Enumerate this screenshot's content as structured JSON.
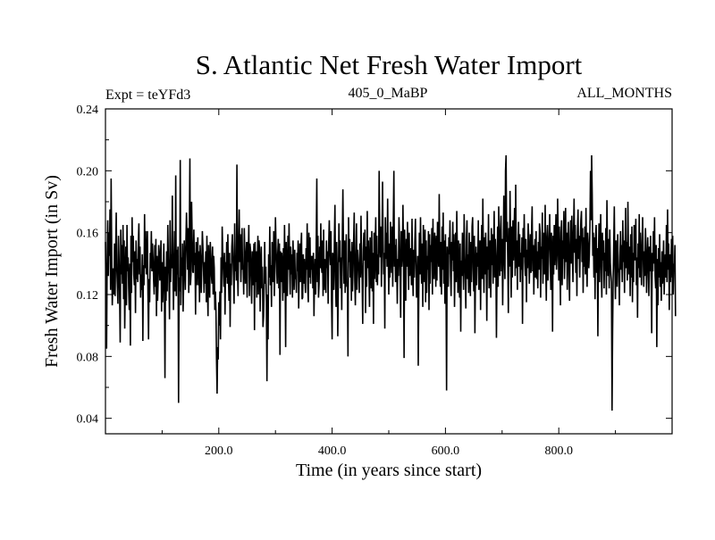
{
  "chart_data": {
    "type": "line",
    "title": "S. Atlantic Net Fresh Water Import",
    "subtitle_left": "Expt = teYFd3",
    "subtitle_center": "405_0_MaBP",
    "subtitle_right": "ALL_MONTHS",
    "xlabel": "Time (in years since start)",
    "ylabel": "Fresh Water Import (in Sv)",
    "xlim": [
      0,
      1000
    ],
    "ylim": [
      0.03,
      0.24
    ],
    "xticks": [
      200,
      400,
      600,
      800
    ],
    "xtick_labels": [
      "200.0",
      "400.0",
      "600.0",
      "800.0"
    ],
    "yticks": [
      0.04,
      0.08,
      0.12,
      0.16,
      0.2,
      0.24
    ],
    "ytick_labels": [
      "0.04",
      "0.08",
      "0.12",
      "0.16",
      "0.20",
      "0.24"
    ],
    "line_color": "#000000",
    "series": [
      {
        "name": "Fresh Water Import",
        "x_start": 0,
        "x_step": 1,
        "values": [
          0.154,
          0.118,
          0.085,
          0.142,
          0.168,
          0.132,
          0.16,
          0.145,
          0.175,
          0.123,
          0.195,
          0.148,
          0.113,
          0.127,
          0.137,
          0.12,
          0.153,
          0.119,
          0.146,
          0.173,
          0.137,
          0.126,
          0.114,
          0.158,
          0.142,
          0.12,
          0.089,
          0.162,
          0.133,
          0.152,
          0.127,
          0.165,
          0.117,
          0.155,
          0.098,
          0.127,
          0.151,
          0.113,
          0.165,
          0.135,
          0.144,
          0.124,
          0.11,
          0.14,
          0.087,
          0.158,
          0.121,
          0.17,
          0.141,
          0.158,
          0.133,
          0.126,
          0.148,
          0.108,
          0.155,
          0.13,
          0.143,
          0.128,
          0.153,
          0.166,
          0.133,
          0.151,
          0.118,
          0.133,
          0.123,
          0.146,
          0.09,
          0.139,
          0.126,
          0.172,
          0.137,
          0.161,
          0.133,
          0.142,
          0.161,
          0.12,
          0.091,
          0.13,
          0.115,
          0.147,
          0.137,
          0.161,
          0.135,
          0.153,
          0.143,
          0.129,
          0.12,
          0.152,
          0.125,
          0.156,
          0.106,
          0.145,
          0.116,
          0.129,
          0.152,
          0.147,
          0.129,
          0.14,
          0.155,
          0.109,
          0.141,
          0.115,
          0.13,
          0.153,
          0.124,
          0.066,
          0.138,
          0.116,
          0.148,
          0.122,
          0.165,
          0.143,
          0.132,
          0.104,
          0.168,
          0.128,
          0.146,
          0.137,
          0.184,
          0.144,
          0.11,
          0.133,
          0.161,
          0.122,
          0.197,
          0.119,
          0.149,
          0.133,
          0.151,
          0.05,
          0.131,
          0.122,
          0.207,
          0.113,
          0.144,
          0.132,
          0.153,
          0.109,
          0.127,
          0.155,
          0.142,
          0.123,
          0.155,
          0.173,
          0.155,
          0.136,
          0.163,
          0.121,
          0.158,
          0.208,
          0.126,
          0.133,
          0.18,
          0.157,
          0.135,
          0.134,
          0.162,
          0.139,
          0.147,
          0.107,
          0.154,
          0.126,
          0.141,
          0.157,
          0.126,
          0.148,
          0.115,
          0.152,
          0.143,
          0.121,
          0.138,
          0.161,
          0.15,
          0.137,
          0.121,
          0.141,
          0.127,
          0.148,
          0.115,
          0.158,
          0.124,
          0.106,
          0.152,
          0.137,
          0.118,
          0.154,
          0.145,
          0.132,
          0.127,
          0.151,
          0.12,
          0.145,
          0.137,
          0.11,
          0.122,
          0.11,
          0.078,
          0.056,
          0.086,
          0.078,
          0.115,
          0.1,
          0.122,
          0.091,
          0.144,
          0.121,
          0.164,
          0.147,
          0.136,
          0.125,
          0.147,
          0.107,
          0.141,
          0.131,
          0.154,
          0.127,
          0.159,
          0.132,
          0.116,
          0.147,
          0.099,
          0.14,
          0.126,
          0.151,
          0.159,
          0.145,
          0.132,
          0.114,
          0.166,
          0.135,
          0.143,
          0.129,
          0.204,
          0.136,
          0.119,
          0.153,
          0.175,
          0.141,
          0.159,
          0.128,
          0.146,
          0.163,
          0.136,
          0.138,
          0.12,
          0.163,
          0.145,
          0.127,
          0.144,
          0.154,
          0.118,
          0.154,
          0.141,
          0.165,
          0.119,
          0.153,
          0.149,
          0.131,
          0.114,
          0.148,
          0.126,
          0.14,
          0.153,
          0.097,
          0.154,
          0.128,
          0.148,
          0.118,
          0.138,
          0.158,
          0.12,
          0.155,
          0.149,
          0.109,
          0.136,
          0.151,
          0.124,
          0.138,
          0.099,
          0.106,
          0.124,
          0.154,
          0.127,
          0.138,
          0.115,
          0.064,
          0.12,
          0.091,
          0.146,
          0.131,
          0.164,
          0.126,
          0.139,
          0.112,
          0.154,
          0.145,
          0.128,
          0.161,
          0.119,
          0.134,
          0.17,
          0.151,
          0.14,
          0.127,
          0.146,
          0.156,
          0.124,
          0.153,
          0.081,
          0.148,
          0.128,
          0.147,
          0.139,
          0.116,
          0.15,
          0.121,
          0.165,
          0.136,
          0.086,
          0.154,
          0.128,
          0.119,
          0.158,
          0.136,
          0.166,
          0.137,
          0.12,
          0.151,
          0.133,
          0.146,
          0.118,
          0.155,
          0.137,
          0.123,
          0.149,
          0.13,
          0.132,
          0.121,
          0.147,
          0.135,
          0.155,
          0.111,
          0.136,
          0.153,
          0.128,
          0.151,
          0.16,
          0.117,
          0.118,
          0.146,
          0.127,
          0.143,
          0.13,
          0.121,
          0.15,
          0.136,
          0.166,
          0.124,
          0.115,
          0.16,
          0.131,
          0.157,
          0.127,
          0.145,
          0.136,
          0.145,
          0.124,
          0.147,
          0.106,
          0.131,
          0.143,
          0.12,
          0.155,
          0.195,
          0.128,
          0.158,
          0.118,
          0.127,
          0.151,
          0.137,
          0.166,
          0.14,
          0.134,
          0.155,
          0.119,
          0.162,
          0.123,
          0.143,
          0.134,
          0.121,
          0.155,
          0.137,
          0.148,
          0.114,
          0.153,
          0.168,
          0.148,
          0.139,
          0.161,
          0.116,
          0.091,
          0.147,
          0.142,
          0.123,
          0.155,
          0.178,
          0.131,
          0.112,
          0.154,
          0.135,
          0.093,
          0.128,
          0.166,
          0.141,
          0.155,
          0.124,
          0.144,
          0.11,
          0.155,
          0.188,
          0.151,
          0.127,
          0.155,
          0.121,
          0.141,
          0.159,
          0.125,
          0.127,
          0.08,
          0.17,
          0.141,
          0.156,
          0.131,
          0.148,
          0.116,
          0.154,
          0.122,
          0.136,
          0.155,
          0.173,
          0.129,
          0.113,
          0.143,
          0.166,
          0.123,
          0.149,
          0.141,
          0.136,
          0.121,
          0.153,
          0.131,
          0.171,
          0.14,
          0.13,
          0.101,
          0.149,
          0.16,
          0.142,
          0.162,
          0.108,
          0.151,
          0.125,
          0.174,
          0.137,
          0.155,
          0.135,
          0.112,
          0.157,
          0.145,
          0.124,
          0.161,
          0.122,
          0.147,
          0.101,
          0.16,
          0.13,
          0.149,
          0.17,
          0.128,
          0.158,
          0.126,
          0.146,
          0.133,
          0.2,
          0.157,
          0.144,
          0.164,
          0.125,
          0.156,
          0.193,
          0.155,
          0.133,
          0.147,
          0.098,
          0.17,
          0.143,
          0.16,
          0.138,
          0.182,
          0.144,
          0.12,
          0.153,
          0.131,
          0.167,
          0.148,
          0.134,
          0.164,
          0.125,
          0.167,
          0.2,
          0.138,
          0.152,
          0.128,
          0.156,
          0.139,
          0.114,
          0.143,
          0.132,
          0.17,
          0.154,
          0.132,
          0.105,
          0.161,
          0.138,
          0.145,
          0.178,
          0.148,
          0.079,
          0.162,
          0.137,
          0.116,
          0.156,
          0.138,
          0.167,
          0.143,
          0.123,
          0.16,
          0.132,
          0.141,
          0.15,
          0.126,
          0.169,
          0.137,
          0.119,
          0.149,
          0.131,
          0.154,
          0.169,
          0.142,
          0.118,
          0.124,
          0.145,
          0.074,
          0.123,
          0.16,
          0.133,
          0.17,
          0.142,
          0.127,
          0.153,
          0.112,
          0.165,
          0.144,
          0.128,
          0.162,
          0.115,
          0.155,
          0.121,
          0.145,
          0.136,
          0.161,
          0.11,
          0.159,
          0.127,
          0.152,
          0.141,
          0.163,
          0.12,
          0.169,
          0.134,
          0.13,
          0.16,
          0.15,
          0.125,
          0.158,
          0.129,
          0.167,
          0.155,
          0.138,
          0.185,
          0.14,
          0.125,
          0.154,
          0.12,
          0.164,
          0.136,
          0.173,
          0.127,
          0.155,
          0.114,
          0.159,
          0.128,
          0.058,
          0.151,
          0.139,
          0.125,
          0.157,
          0.146,
          0.168,
          0.132,
          0.119,
          0.154,
          0.142,
          0.167,
          0.135,
          0.159,
          0.112,
          0.141,
          0.16,
          0.128,
          0.174,
          0.148,
          0.121,
          0.155,
          0.137,
          0.118,
          0.153,
          0.096,
          0.142,
          0.132,
          0.16,
          0.141,
          0.123,
          0.172,
          0.145,
          0.131,
          0.111,
          0.155,
          0.168,
          0.13,
          0.146,
          0.121,
          0.16,
          0.14,
          0.119,
          0.154,
          0.128,
          0.164,
          0.17,
          0.137,
          0.122,
          0.158,
          0.095,
          0.133,
          0.151,
          0.126,
          0.147,
          0.138,
          0.168,
          0.123,
          0.142,
          0.155,
          0.11,
          0.145,
          0.165,
          0.13,
          0.182,
          0.144,
          0.121,
          0.157,
          0.133,
          0.16,
          0.142,
          0.103,
          0.151,
          0.136,
          0.172,
          0.124,
          0.141,
          0.155,
          0.118,
          0.163,
          0.139,
          0.159,
          0.127,
          0.148,
          0.174,
          0.131,
          0.156,
          0.142,
          0.092,
          0.136,
          0.164,
          0.125,
          0.177,
          0.15,
          0.132,
          0.16,
          0.171,
          0.135,
          0.156,
          0.113,
          0.145,
          0.184,
          0.144,
          0.13,
          0.2,
          0.21,
          0.154,
          0.167,
          0.141,
          0.108,
          0.163,
          0.138,
          0.187,
          0.152,
          0.118,
          0.164,
          0.131,
          0.168,
          0.142,
          0.158,
          0.176,
          0.132,
          0.191,
          0.137,
          0.155,
          0.123,
          0.151,
          0.167,
          0.138,
          0.159,
          0.128,
          0.147,
          0.136,
          0.157,
          0.101,
          0.163,
          0.144,
          0.172,
          0.141,
          0.132,
          0.156,
          0.115,
          0.149,
          0.137,
          0.166,
          0.158,
          0.127,
          0.145,
          0.159,
          0.134,
          0.161,
          0.177,
          0.135,
          0.152,
          0.12,
          0.144,
          0.156,
          0.131,
          0.161,
          0.13,
          0.148,
          0.124,
          0.154,
          0.136,
          0.166,
          0.16,
          0.118,
          0.151,
          0.143,
          0.173,
          0.127,
          0.148,
          0.16,
          0.133,
          0.178,
          0.138,
          0.116,
          0.157,
          0.165,
          0.129,
          0.147,
          0.159,
          0.172,
          0.14,
          0.123,
          0.16,
          0.145,
          0.096,
          0.158,
          0.133,
          0.165,
          0.139,
          0.151,
          0.172,
          0.136,
          0.147,
          0.182,
          0.156,
          0.129,
          0.164,
          0.141,
          0.113,
          0.16,
          0.168,
          0.126,
          0.155,
          0.143,
          0.174,
          0.13,
          0.149,
          0.176,
          0.141,
          0.16,
          0.123,
          0.155,
          0.167,
          0.134,
          0.116,
          0.153,
          0.168,
          0.14,
          0.171,
          0.15,
          0.128,
          0.159,
          0.182,
          0.147,
          0.165,
          0.134,
          0.156,
          0.119,
          0.161,
          0.175,
          0.143,
          0.158,
          0.131,
          0.154,
          0.168,
          0.174,
          0.141,
          0.163,
          0.121,
          0.157,
          0.138,
          0.164,
          0.133,
          0.176,
          0.148,
          0.125,
          0.16,
          0.152,
          0.137,
          0.146,
          0.164,
          0.2,
          0.168,
          0.21,
          0.185,
          0.145,
          0.16,
          0.131,
          0.157,
          0.117,
          0.158,
          0.165,
          0.134,
          0.15,
          0.093,
          0.144,
          0.166,
          0.128,
          0.153,
          0.172,
          0.136,
          0.118,
          0.16,
          0.142,
          0.155,
          0.124,
          0.147,
          0.135,
          0.163,
          0.12,
          0.181,
          0.149,
          0.132,
          0.156,
          0.124,
          0.162,
          0.14,
          0.133,
          0.128,
          0.045,
          0.096,
          0.13,
          0.152,
          0.177,
          0.138,
          0.117,
          0.155,
          0.142,
          0.125,
          0.159,
          0.137,
          0.134,
          0.113,
          0.145,
          0.161,
          0.136,
          0.152,
          0.128,
          0.168,
          0.141,
          0.155,
          0.121,
          0.148,
          0.176,
          0.137,
          0.154,
          0.129,
          0.18,
          0.146,
          0.133,
          0.151,
          0.119,
          0.159,
          0.131,
          0.164,
          0.115,
          0.147,
          0.128,
          0.165,
          0.142,
          0.153,
          0.169,
          0.126,
          0.144,
          0.105,
          0.153,
          0.137,
          0.172,
          0.131,
          0.16,
          0.14,
          0.126,
          0.154,
          0.17,
          0.145,
          0.125,
          0.148,
          0.132,
          0.163,
          0.149,
          0.121,
          0.138,
          0.157,
          0.141,
          0.119,
          0.151,
          0.135,
          0.158,
          0.13,
          0.095,
          0.147,
          0.135,
          0.161,
          0.14,
          0.17,
          0.132,
          0.124,
          0.152,
          0.086,
          0.143,
          0.113,
          0.15,
          0.131,
          0.159,
          0.125,
          0.141,
          0.116,
          0.148,
          0.127,
          0.137,
          0.155,
          0.12,
          0.138,
          0.146,
          0.131,
          0.165,
          0.128,
          0.175,
          0.136,
          0.153,
          0.11,
          0.146,
          0.128,
          0.14,
          0.156,
          0.131,
          0.158,
          0.12,
          0.14,
          0.135,
          0.152,
          0.106
        ]
      }
    ]
  }
}
